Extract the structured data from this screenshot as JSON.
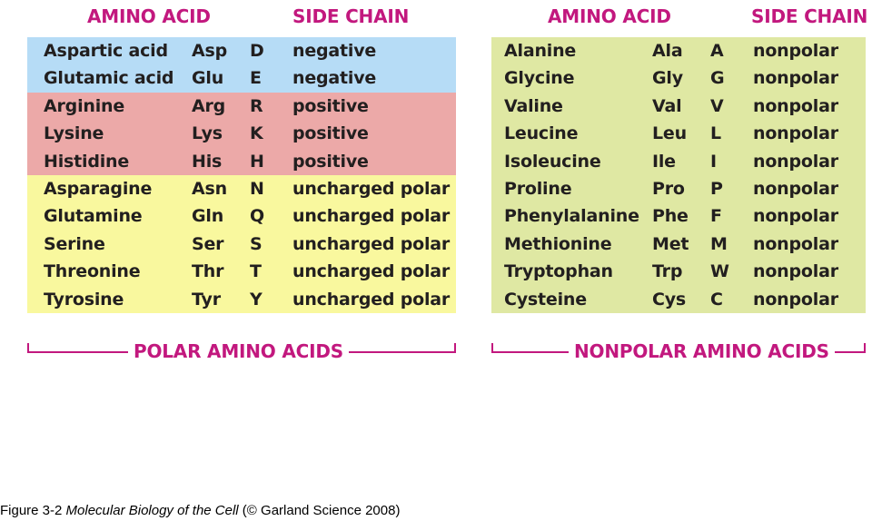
{
  "polar": {
    "header_amino": "AMINO ACID",
    "header_side": "SIDE CHAIN",
    "rows": [
      {
        "name": "Aspartic acid",
        "three": "Asp",
        "one": "D",
        "chain": "negative",
        "type": "negative"
      },
      {
        "name": "Glutamic acid",
        "three": "Glu",
        "one": "E",
        "chain": "negative",
        "type": "negative"
      },
      {
        "name": "Arginine",
        "three": "Arg",
        "one": "R",
        "chain": "positive",
        "type": "positive"
      },
      {
        "name": "Lysine",
        "three": "Lys",
        "one": "K",
        "chain": "positive",
        "type": "positive"
      },
      {
        "name": "Histidine",
        "three": "His",
        "one": "H",
        "chain": "positive",
        "type": "positive"
      },
      {
        "name": "Asparagine",
        "three": "Asn",
        "one": "N",
        "chain": "uncharged polar",
        "type": "uncharged"
      },
      {
        "name": "Glutamine",
        "three": "Gln",
        "one": "Q",
        "chain": "uncharged polar",
        "type": "uncharged"
      },
      {
        "name": "Serine",
        "three": "Ser",
        "one": "S",
        "chain": "uncharged polar",
        "type": "uncharged"
      },
      {
        "name": "Threonine",
        "three": "Thr",
        "one": "T",
        "chain": "uncharged polar",
        "type": "uncharged"
      },
      {
        "name": "Tyrosine",
        "three": "Tyr",
        "one": "Y",
        "chain": "uncharged polar",
        "type": "uncharged"
      }
    ],
    "group_label": "POLAR AMINO ACIDS"
  },
  "nonpolar": {
    "header_amino": "AMINO ACID",
    "header_side": "SIDE CHAIN",
    "rows": [
      {
        "name": "Alanine",
        "three": "Ala",
        "one": "A",
        "chain": "nonpolar",
        "type": "nonpolar"
      },
      {
        "name": "Glycine",
        "three": "Gly",
        "one": "G",
        "chain": "nonpolar",
        "type": "nonpolar"
      },
      {
        "name": "Valine",
        "three": "Val",
        "one": "V",
        "chain": "nonpolar",
        "type": "nonpolar"
      },
      {
        "name": "Leucine",
        "three": "Leu",
        "one": "L",
        "chain": "nonpolar",
        "type": "nonpolar"
      },
      {
        "name": "Isoleucine",
        "three": "Ile",
        "one": "I",
        "chain": "nonpolar",
        "type": "nonpolar"
      },
      {
        "name": "Proline",
        "three": "Pro",
        "one": "P",
        "chain": "nonpolar",
        "type": "nonpolar"
      },
      {
        "name": "Phenylalanine",
        "three": "Phe",
        "one": "F",
        "chain": "nonpolar",
        "type": "nonpolar"
      },
      {
        "name": "Methionine",
        "three": "Met",
        "one": "M",
        "chain": "nonpolar",
        "type": "nonpolar"
      },
      {
        "name": "Tryptophan",
        "three": "Trp",
        "one": "W",
        "chain": "nonpolar",
        "type": "nonpolar"
      },
      {
        "name": "Cysteine",
        "three": "Cys",
        "one": "C",
        "chain": "nonpolar",
        "type": "nonpolar"
      }
    ],
    "group_label": "NONPOLAR AMINO ACIDS"
  },
  "colors": {
    "accent": "#c2187e",
    "negative": "#b6dcf6",
    "positive": "#eca9a8",
    "uncharged": "#f9f89e",
    "nonpolar": "#dfe8a3"
  },
  "caption": {
    "prefix": "Figure 3-2  ",
    "title": "Molecular Biology of the Cell",
    "suffix": " (© Garland Science 2008)"
  }
}
